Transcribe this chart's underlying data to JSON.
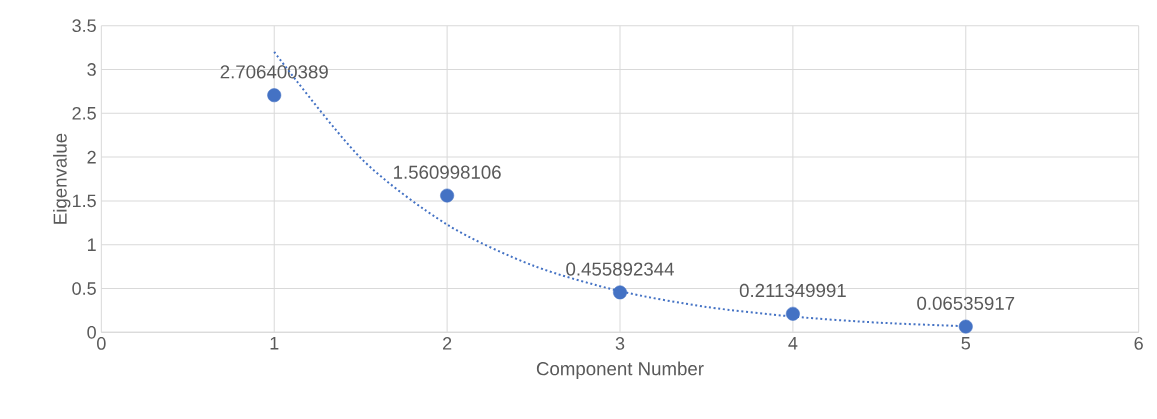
{
  "chart_data": {
    "type": "scatter",
    "xlabel": "Component Number",
    "ylabel": "Eigenvalue",
    "x": [
      1,
      2,
      3,
      4,
      5
    ],
    "series": [
      {
        "color": "#4472c4",
        "marker": "circle",
        "values": [
          2.706400389,
          1.560998106,
          0.455892344,
          0.211349991,
          0.06535917
        ],
        "value_labels": [
          "2.706400389",
          "1.560998106",
          "0.455892344",
          "0.211349991",
          "0.06535917"
        ]
      },
      {
        "type": "line",
        "color": "#4472c4",
        "marker": "none",
        "line_style": "dotted",
        "x": [
          1,
          1.5,
          2,
          2.5,
          3,
          3.5,
          4,
          4.5,
          5
        ],
        "values": [
          3.2,
          1.99,
          1.23,
          0.76,
          0.47,
          0.29,
          0.18,
          0.11,
          0.07
        ]
      }
    ],
    "grid": true,
    "xlim": [
      0,
      6
    ],
    "xticks": [
      0,
      1,
      2,
      3,
      4,
      5,
      6
    ],
    "ylim": [
      0,
      3.5
    ],
    "yticks": [
      0,
      0.5,
      1,
      1.5,
      2,
      2.5,
      3,
      3.5
    ]
  }
}
